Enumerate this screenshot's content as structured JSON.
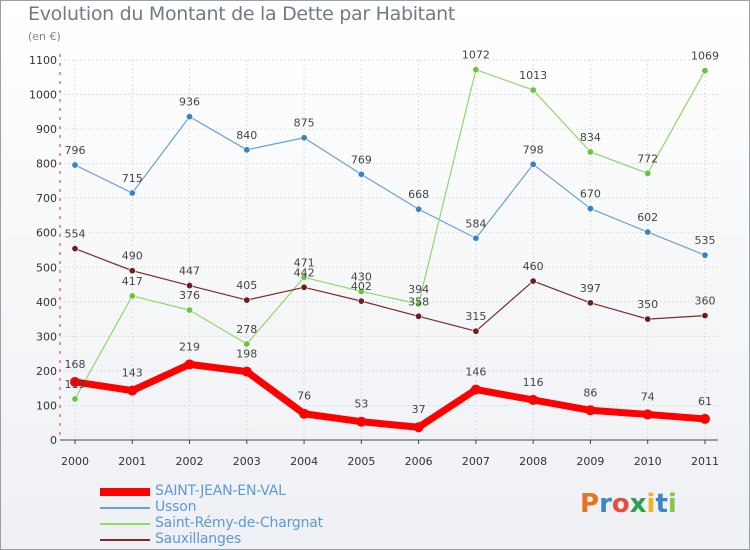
{
  "title": "Evolution du Montant de la Dette par Habitant",
  "unit_label": "(en €)",
  "logo_text": "Proxiti",
  "logo_colors": [
    "#e8741e",
    "#3a86c8",
    "#e84c3d",
    "#2e9d4d",
    "#f0b429",
    "#3a86c8",
    "#8bc34a"
  ],
  "chart_data": {
    "type": "line",
    "x": [
      "2000",
      "2001",
      "2002",
      "2003",
      "2004",
      "2005",
      "2006",
      "2007",
      "2008",
      "2009",
      "2010",
      "2011"
    ],
    "ylim": [
      0,
      1100
    ],
    "yticks": [
      0,
      100,
      200,
      300,
      400,
      500,
      600,
      700,
      800,
      900,
      1000,
      1100
    ],
    "grid": true,
    "legend_position": "bottom-left",
    "series": [
      {
        "name": "Usson",
        "color": "#6a9fd4",
        "marker": "#3b82c4",
        "width": 1.2,
        "values": [
          796,
          715,
          936,
          840,
          875,
          769,
          668,
          584,
          798,
          670,
          602,
          535
        ]
      },
      {
        "name": "Saint-Rémy-de-Chargnat",
        "color": "#8fd86a",
        "marker": "#6cc43c",
        "width": 1.2,
        "values": [
          119,
          417,
          376,
          278,
          471,
          430,
          394,
          1072,
          1013,
          834,
          772,
          1069
        ]
      },
      {
        "name": "Sauxillanges",
        "color": "#7a2b2b",
        "marker": "#6b1f1f",
        "width": 1.2,
        "values": [
          554,
          490,
          447,
          405,
          442,
          402,
          358,
          315,
          460,
          397,
          350,
          360
        ]
      },
      {
        "name": "SAINT-JEAN-EN-VAL",
        "color": "#ff0000",
        "marker": "#ff0000",
        "width": 7,
        "values": [
          168,
          143,
          219,
          198,
          76,
          53,
          37,
          146,
          116,
          86,
          74,
          61
        ]
      }
    ],
    "legend_order": [
      "SAINT-JEAN-EN-VAL",
      "Usson",
      "Saint-Rémy-de-Chargnat",
      "Sauxillanges"
    ]
  }
}
